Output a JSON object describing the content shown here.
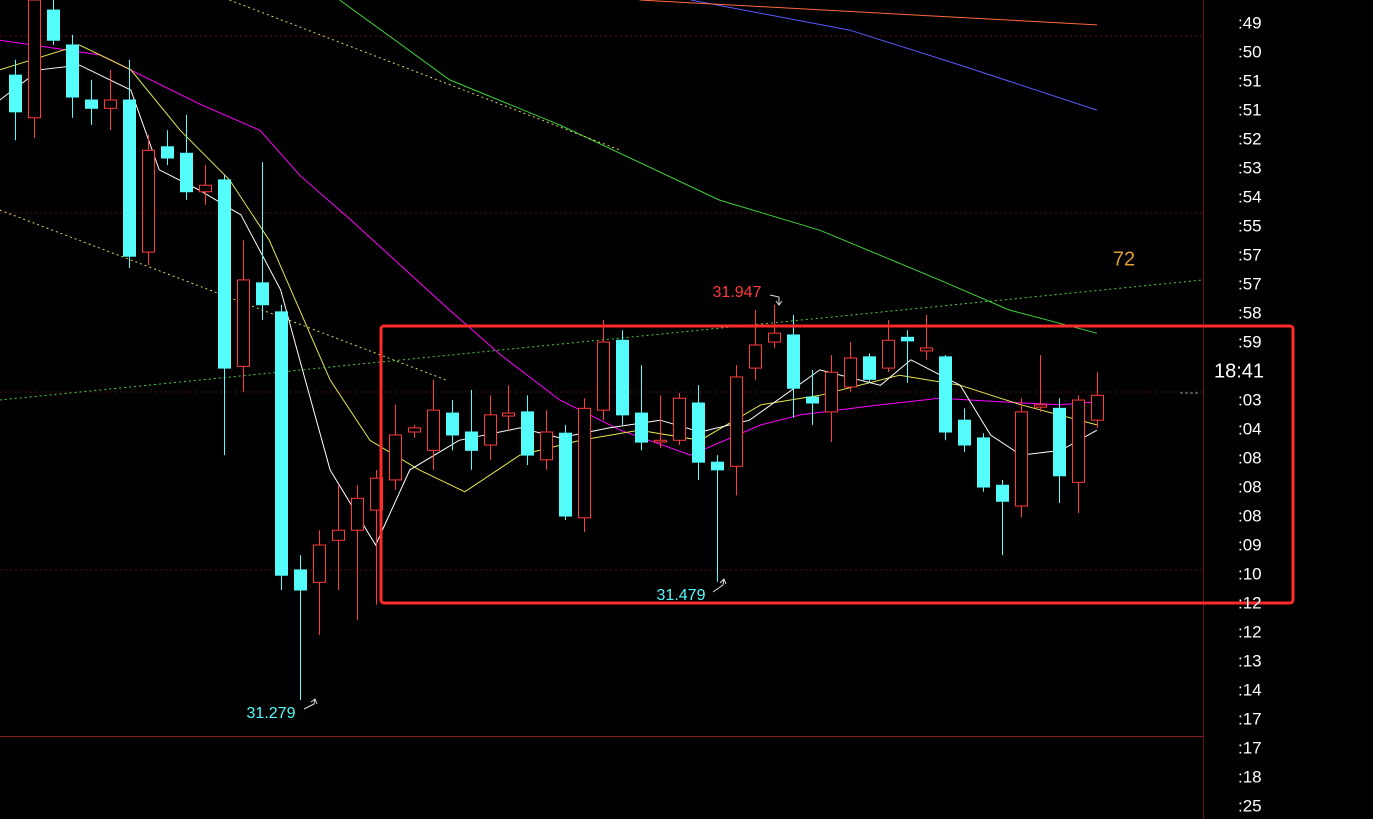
{
  "chart_data": {
    "type": "candlestick",
    "xlim": [
      -0.79,
      62.59
    ],
    "ylim": [
      31.22,
      32.462
    ],
    "up_color": "#ff3b3b",
    "down_color": "#54fcfc",
    "open": [
      32.335,
      32.263,
      32.445,
      32.386,
      32.293,
      32.279,
      32.293,
      32.036,
      32.214,
      32.203,
      32.138,
      32.158,
      31.843,
      31.984,
      31.935,
      31.499,
      31.478,
      31.549,
      31.566,
      31.6,
      31.651,
      31.732,
      31.701,
      31.764,
      31.732,
      31.71,
      31.759,
      31.766,
      31.685,
      31.73,
      31.587,
      31.769,
      31.887,
      31.764,
      31.715,
      31.718,
      31.781,
      31.681,
      31.674,
      31.84,
      31.884,
      31.896,
      31.791,
      31.766,
      31.808,
      31.859,
      31.84,
      31.892,
      31.869,
      31.859,
      31.752,
      31.722,
      31.642,
      31.607,
      31.774,
      31.772,
      31.647,
      31.752
    ],
    "high": [
      32.361,
      32.462,
      32.462,
      32.403,
      32.327,
      32.344,
      32.361,
      32.234,
      32.242,
      32.268,
      32.183,
      32.166,
      32.056,
      32.188,
      31.947,
      31.524,
      31.566,
      31.642,
      31.642,
      31.668,
      31.778,
      31.744,
      31.82,
      31.786,
      31.803,
      31.794,
      31.811,
      31.794,
      31.769,
      31.744,
      31.789,
      31.921,
      31.904,
      31.845,
      31.794,
      31.798,
      31.811,
      31.693,
      31.845,
      31.938,
      31.947,
      31.93,
      31.837,
      31.862,
      31.884,
      31.865,
      31.921,
      31.904,
      31.93,
      31.862,
      31.772,
      31.73,
      31.651,
      31.789,
      31.862,
      31.789,
      31.794,
      31.833
    ],
    "low": [
      32.225,
      32.229,
      32.386,
      32.263,
      32.251,
      32.242,
      32.009,
      32.014,
      32.183,
      32.124,
      32.116,
      31.693,
      31.8,
      31.921,
      31.465,
      31.279,
      31.389,
      31.465,
      31.414,
      31.44,
      31.634,
      31.722,
      31.668,
      31.701,
      31.668,
      31.685,
      31.735,
      31.676,
      31.668,
      31.583,
      31.563,
      31.752,
      31.744,
      31.701,
      31.705,
      31.71,
      31.651,
      31.479,
      31.625,
      31.82,
      31.874,
      31.756,
      31.744,
      31.715,
      31.8,
      31.815,
      31.833,
      31.815,
      31.854,
      31.718,
      31.698,
      31.631,
      31.524,
      31.588,
      31.766,
      31.612,
      31.595,
      31.739
    ],
    "close": [
      32.273,
      32.462,
      32.394,
      32.298,
      32.279,
      32.293,
      32.029,
      32.208,
      32.195,
      32.138,
      32.149,
      31.84,
      31.989,
      31.947,
      31.49,
      31.465,
      31.541,
      31.566,
      31.62,
      31.654,
      31.727,
      31.739,
      31.769,
      31.727,
      31.701,
      31.761,
      31.764,
      31.693,
      31.732,
      31.59,
      31.772,
      31.884,
      31.761,
      31.715,
      31.718,
      31.789,
      31.681,
      31.668,
      31.825,
      31.879,
      31.899,
      31.806,
      31.781,
      31.833,
      31.857,
      31.821,
      31.887,
      31.886,
      31.874,
      31.732,
      31.71,
      31.639,
      31.615,
      31.766,
      31.778,
      31.658,
      31.786,
      31.794
    ],
    "lines": [
      {
        "color": "#ff00ff",
        "dashed": false,
        "x": [
          -0.8,
          4.5,
          9.8,
          12.9,
          15.0,
          17.7,
          20.3,
          22.9,
          25.6,
          28.7,
          31.9,
          35.6,
          39.3,
          41.4,
          45.6,
          48.7,
          51.9,
          55.1,
          57.0
        ],
        "values": [
          32.394,
          32.369,
          32.285,
          32.242,
          32.166,
          32.09,
          32.014,
          31.938,
          31.862,
          31.786,
          31.735,
          31.693,
          31.744,
          31.761,
          31.778,
          31.789,
          31.783,
          31.778,
          31.783
        ]
      },
      {
        "color": "#e8e84a",
        "dashed": false,
        "x": [
          -0.8,
          3.4,
          6.1,
          8.7,
          11.3,
          13.4,
          15.0,
          16.6,
          18.7,
          21.3,
          23.7,
          26.6,
          29.8,
          32.9,
          36.1,
          39.3,
          42.4,
          46.6,
          49.8,
          53.0,
          57.0
        ],
        "values": [
          32.344,
          32.386,
          32.344,
          32.242,
          32.158,
          32.056,
          31.938,
          31.82,
          31.718,
          31.668,
          31.631,
          31.693,
          31.718,
          31.735,
          31.718,
          31.778,
          31.794,
          31.828,
          31.811,
          31.778,
          31.744
        ]
      },
      {
        "color": "#ffffff",
        "dashed": false,
        "x": [
          -0.8,
          1.3,
          3.4,
          6.1,
          7.6,
          9.7,
          11.9,
          14.0,
          15.0,
          16.6,
          19.0,
          20.8,
          23.4,
          26.6,
          28.7,
          31.3,
          34.0,
          36.1,
          38.7,
          42.4,
          45.6,
          47.2,
          49.8,
          51.4,
          53.0,
          55.1,
          57.0
        ],
        "values": [
          32.293,
          32.344,
          32.352,
          32.31,
          32.175,
          32.141,
          32.099,
          31.972,
          31.854,
          31.668,
          31.541,
          31.668,
          31.718,
          31.739,
          31.722,
          31.739,
          31.752,
          31.732,
          31.752,
          31.837,
          31.811,
          31.854,
          31.811,
          31.727,
          31.693,
          31.701,
          31.735
        ]
      },
      {
        "color": "#3ed13a",
        "dashed": false,
        "x": [
          17.1,
          22.9,
          28.7,
          37.1,
          42.4,
          48.7,
          52.4,
          57.0
        ],
        "values": [
          32.462,
          32.327,
          32.251,
          32.124,
          32.073,
          31.989,
          31.938,
          31.899
        ]
      },
      {
        "color": "#5a5aff",
        "dashed": false,
        "x": [
          35.6,
          44.0,
          49.8,
          57.0
        ],
        "values": [
          32.462,
          32.411,
          32.352,
          32.276
        ]
      },
      {
        "color": "#ff6a3c",
        "dashed": false,
        "x": [
          32.9,
          57.0
        ],
        "values": [
          32.462,
          32.42
        ]
      },
      {
        "color": "#d8d860",
        "dashed": true,
        "x": [
          11.3,
          31.9
        ],
        "values": [
          32.462,
          32.208
        ]
      },
      {
        "color": "#d8d860",
        "dashed": true,
        "x": [
          -0.8,
          22.7
        ],
        "values": [
          32.107,
          31.82
        ]
      },
      {
        "color": "#4cd13a",
        "dashed": true,
        "x": [
          -0.8,
          62.6
        ],
        "values": [
          31.786,
          31.989
        ]
      }
    ],
    "annotations": [
      "31.947",
      "31.479",
      "31.279"
    ],
    "marker_label": "72",
    "right_axis_labels": [
      ":49",
      ":50",
      ":51",
      ":51",
      ":52",
      ":53",
      ":54",
      ":55",
      ":57",
      ":57",
      ":58",
      ":59",
      "18:41",
      ":03",
      ":04",
      ":08",
      ":08",
      ":08",
      ":09",
      ":10",
      ":12",
      ":12",
      ":13",
      ":14",
      ":17",
      ":17",
      ":18",
      ":25"
    ]
  }
}
